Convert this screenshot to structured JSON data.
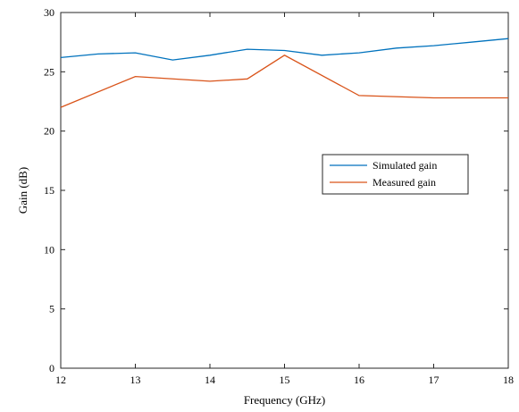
{
  "chart_data": {
    "type": "line",
    "title": "",
    "xlabel": "Frequency (GHz)",
    "ylabel": "Gain (dB)",
    "xlim": [
      12,
      18
    ],
    "ylim": [
      0,
      30
    ],
    "xticks": [
      12,
      13,
      14,
      15,
      16,
      17,
      18
    ],
    "yticks": [
      0,
      5,
      10,
      15,
      20,
      25,
      30
    ],
    "grid": false,
    "legend_position": "center-right",
    "series": [
      {
        "name": "Simulated gain",
        "color": "#0072bd",
        "x": [
          12,
          12.5,
          13,
          13.5,
          14,
          14.5,
          15,
          15.5,
          16,
          16.5,
          17,
          17.5,
          18
        ],
        "y": [
          26.2,
          26.5,
          26.6,
          26.0,
          26.4,
          26.9,
          26.8,
          26.4,
          26.6,
          27.0,
          27.2,
          27.5,
          27.8
        ]
      },
      {
        "name": "Measured gain",
        "color": "#d95319",
        "x": [
          12,
          13,
          14,
          14.5,
          15,
          16,
          17,
          18
        ],
        "y": [
          22.0,
          24.6,
          24.2,
          24.4,
          26.4,
          23.0,
          22.8,
          22.8
        ]
      }
    ]
  }
}
